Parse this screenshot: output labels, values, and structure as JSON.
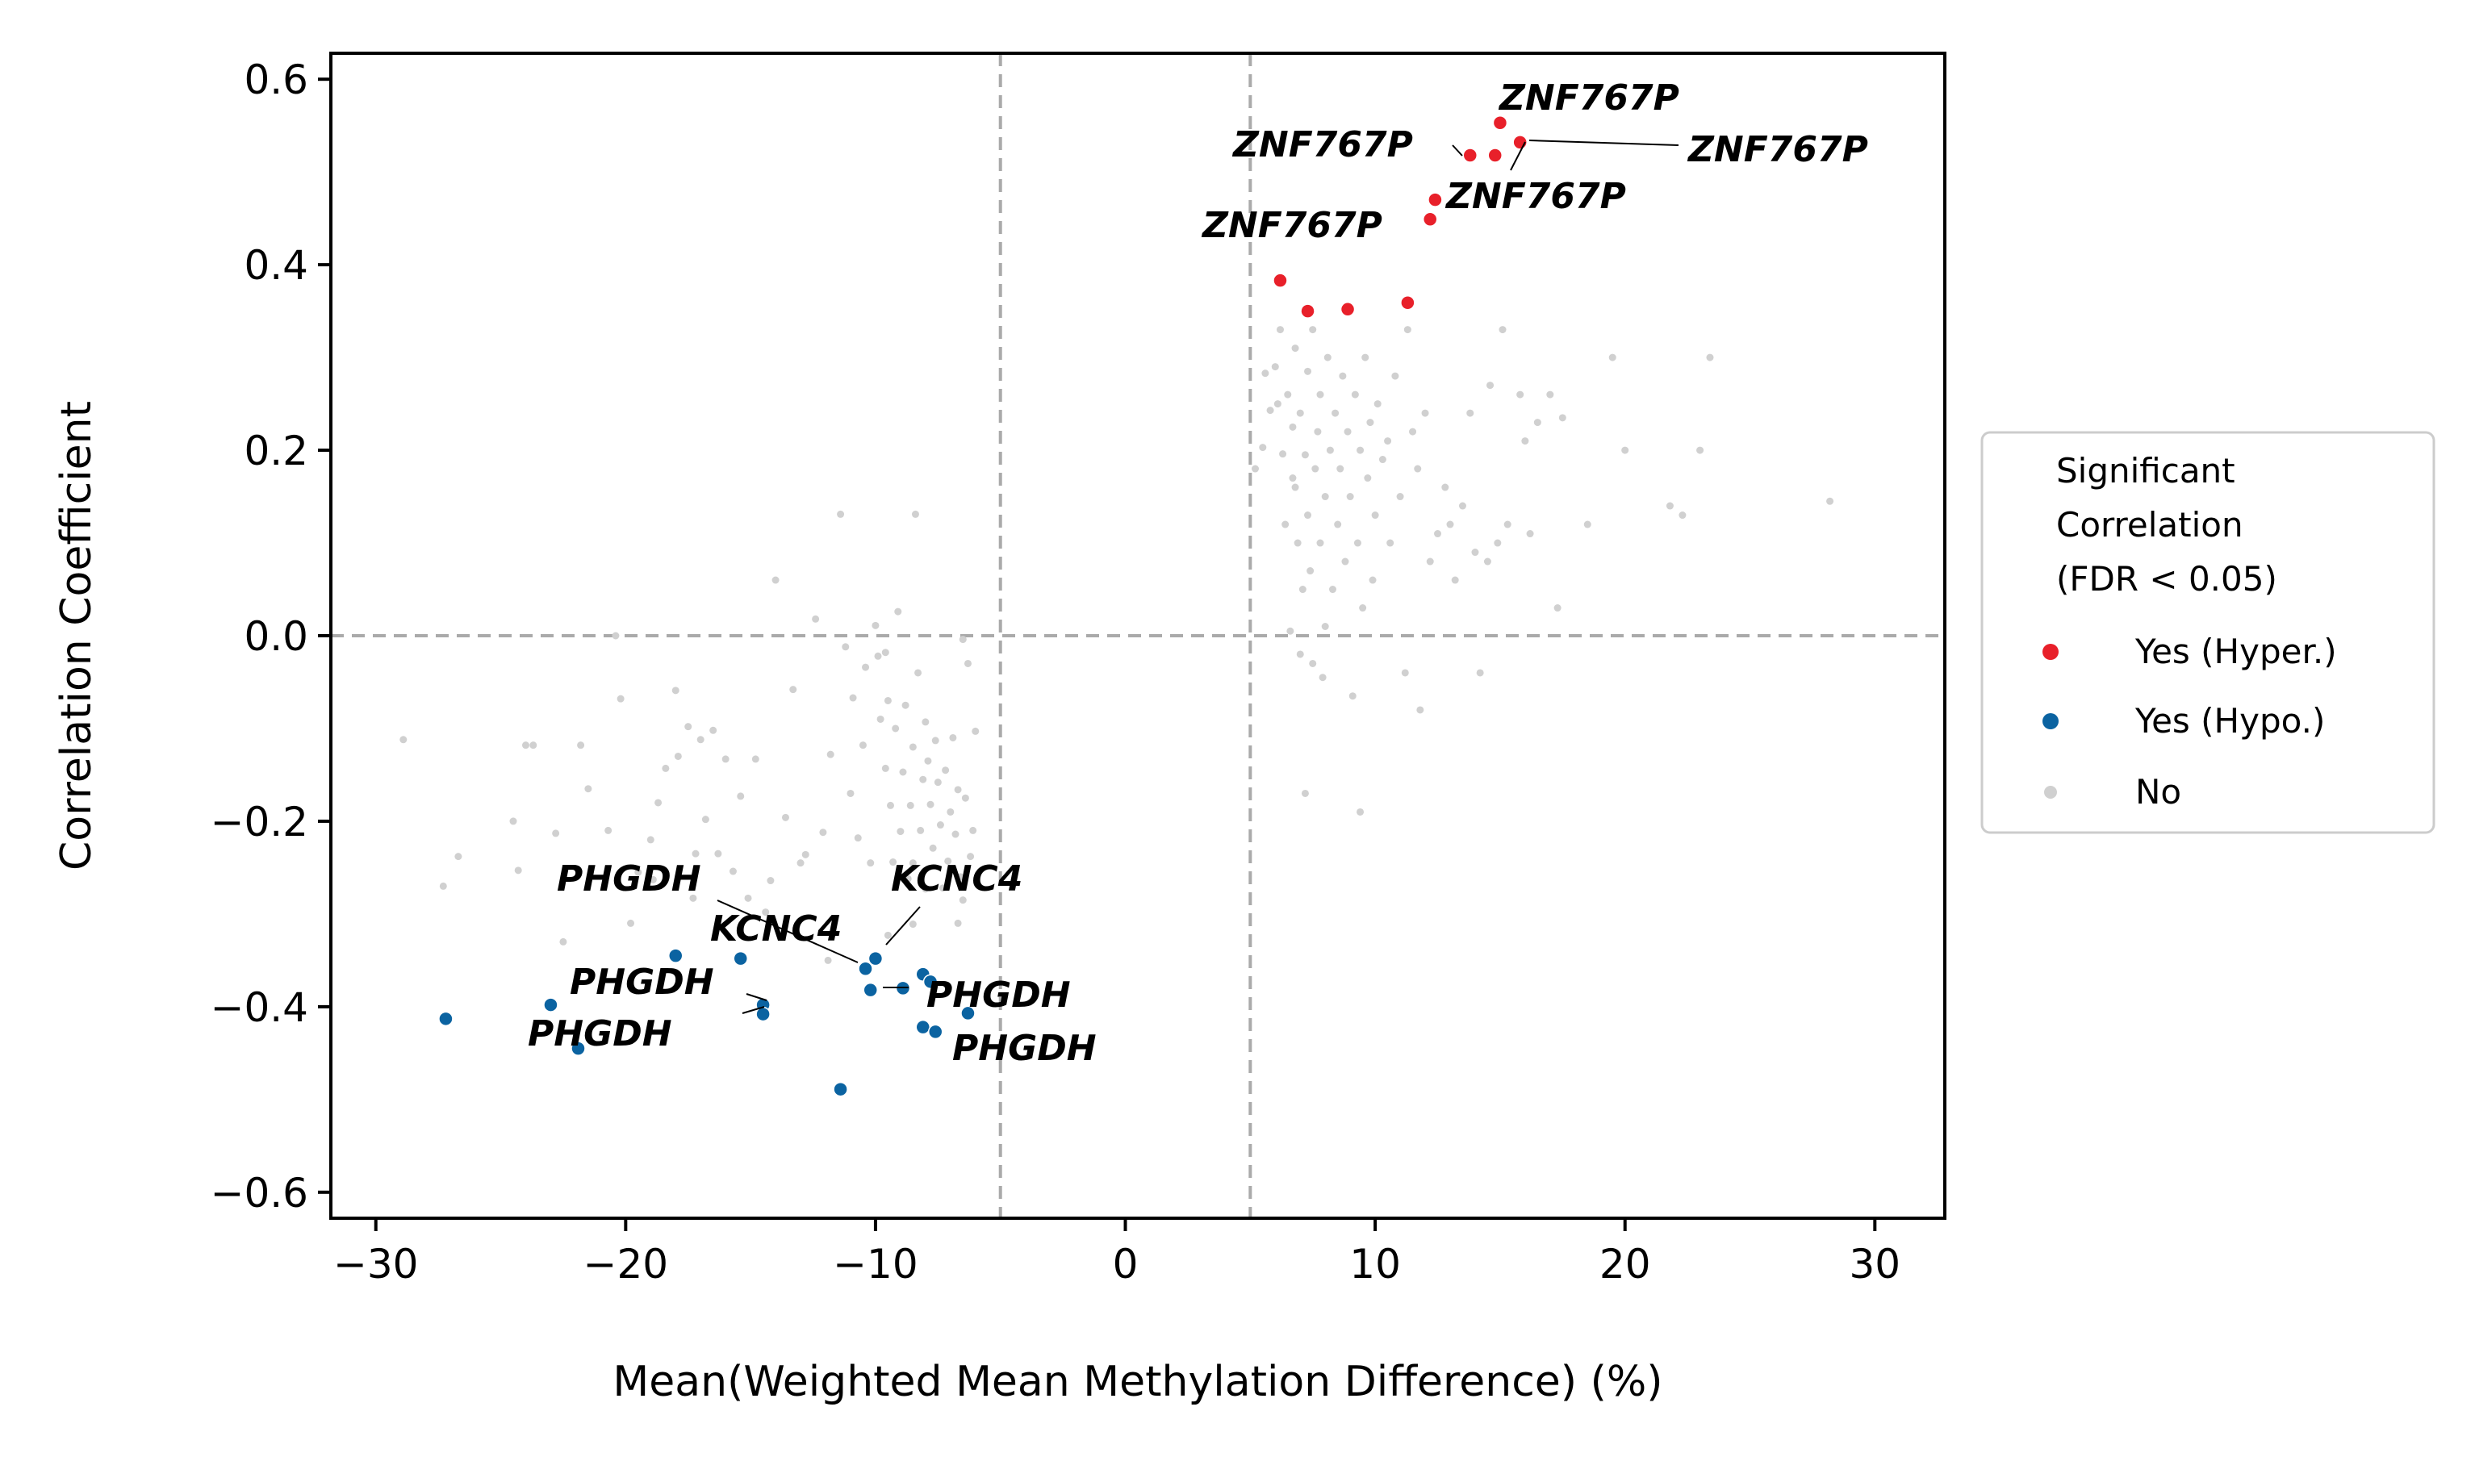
{
  "chart_data": {
    "type": "scatter",
    "xlabel": "Mean(Weighted Mean Methylation Difference) (%)",
    "ylabel": "Correlation Coefficient",
    "xlim": [
      -31.8,
      32.8
    ],
    "ylim": [
      -0.628,
      0.628
    ],
    "x_ticks": [
      -30,
      -20,
      -10,
      0,
      10,
      20,
      30
    ],
    "x_tick_labels": [
      "−30",
      "−20",
      "−10",
      "0",
      "10",
      "20",
      "30"
    ],
    "y_ticks": [
      -0.6,
      -0.4,
      -0.2,
      0.0,
      0.2,
      0.4,
      0.6
    ],
    "y_tick_labels": [
      "−0.6",
      "−0.4",
      "−0.2",
      "0.0",
      "0.2",
      "0.4",
      "0.6"
    ],
    "reference_lines": {
      "x": [
        -5,
        5
      ],
      "y": [
        0
      ],
      "color": "#aaaaaa",
      "style": "dashed"
    },
    "legend": {
      "title": [
        "Significant",
        "Correlation",
        "(FDR < 0.05)"
      ],
      "placement": "right outside",
      "entries": [
        "Yes (Hyper.)",
        "Yes (Hypo.)",
        "No"
      ]
    },
    "series": [
      {
        "name": "Yes (Hyper.)",
        "color": "#e8202a",
        "points": [
          [
            6.2,
            0.383
          ],
          [
            7.3,
            0.35
          ],
          [
            8.9,
            0.352
          ],
          [
            11.3,
            0.359
          ],
          [
            12.2,
            0.449
          ],
          [
            12.4,
            0.47
          ],
          [
            13.8,
            0.518
          ],
          [
            14.8,
            0.518
          ],
          [
            15.0,
            0.553
          ],
          [
            15.8,
            0.532
          ]
        ]
      },
      {
        "name": "Yes (Hypo.)",
        "color": "#0b63a1",
        "points": [
          [
            -27.2,
            -0.413
          ],
          [
            -23.0,
            -0.398
          ],
          [
            -21.9,
            -0.445
          ],
          [
            -18.0,
            -0.345
          ],
          [
            -15.4,
            -0.348
          ],
          [
            -14.5,
            -0.398
          ],
          [
            -14.5,
            -0.408
          ],
          [
            -11.4,
            -0.489
          ],
          [
            -10.4,
            -0.359
          ],
          [
            -10.0,
            -0.348
          ],
          [
            -10.2,
            -0.382
          ],
          [
            -8.9,
            -0.38
          ],
          [
            -8.1,
            -0.365
          ],
          [
            -7.8,
            -0.373
          ],
          [
            -8.1,
            -0.422
          ],
          [
            -7.6,
            -0.427
          ],
          [
            -6.3,
            -0.407
          ]
        ]
      },
      {
        "name": "No",
        "color": "#d0d0d0",
        "points": [
          [
            -28.9,
            -0.112
          ],
          [
            -27.3,
            -0.27
          ],
          [
            -26.7,
            -0.238
          ],
          [
            -24.5,
            -0.2
          ],
          [
            -24.3,
            -0.253
          ],
          [
            -24.0,
            -0.118
          ],
          [
            -23.7,
            -0.118
          ],
          [
            -22.8,
            -0.213
          ],
          [
            -22.5,
            -0.33
          ],
          [
            -21.8,
            -0.118
          ],
          [
            -21.5,
            -0.165
          ],
          [
            -20.7,
            -0.21
          ],
          [
            -20.2,
            -0.068
          ],
          [
            -19.8,
            -0.31
          ],
          [
            -19.5,
            -0.255
          ],
          [
            -19.0,
            -0.22
          ],
          [
            -18.9,
            -0.263
          ],
          [
            -18.7,
            -0.18
          ],
          [
            -18.4,
            -0.143
          ],
          [
            -18.0,
            -0.059
          ],
          [
            -17.9,
            -0.13
          ],
          [
            -17.5,
            -0.098
          ],
          [
            -17.3,
            -0.283
          ],
          [
            -17.2,
            -0.235
          ],
          [
            -17.0,
            -0.112
          ],
          [
            -16.8,
            -0.198
          ],
          [
            -16.5,
            -0.102
          ],
          [
            -16.3,
            -0.235
          ],
          [
            -16.0,
            -0.133
          ],
          [
            -15.7,
            -0.254
          ],
          [
            -15.4,
            -0.173
          ],
          [
            -15.1,
            -0.283
          ],
          [
            -14.8,
            -0.133
          ],
          [
            -14.4,
            -0.298
          ],
          [
            -14.2,
            -0.264
          ],
          [
            -14.0,
            0.06
          ],
          [
            -13.6,
            -0.196
          ],
          [
            -13.3,
            -0.058
          ],
          [
            -13.0,
            -0.245
          ],
          [
            -12.8,
            -0.236
          ],
          [
            -12.4,
            0.018
          ],
          [
            -12.1,
            -0.212
          ],
          [
            -11.8,
            -0.128
          ],
          [
            -11.4,
            0.131
          ],
          [
            -11.2,
            -0.012
          ],
          [
            -11.0,
            -0.17
          ],
          [
            -10.9,
            -0.067
          ],
          [
            -10.7,
            -0.218
          ],
          [
            -10.5,
            -0.118
          ],
          [
            -10.4,
            -0.034
          ],
          [
            -10.2,
            -0.245
          ],
          [
            -10.0,
            0.011
          ],
          [
            -9.9,
            -0.022
          ],
          [
            -9.8,
            -0.09
          ],
          [
            -9.6,
            -0.018
          ],
          [
            -9.6,
            -0.143
          ],
          [
            -9.5,
            -0.07
          ],
          [
            -9.4,
            -0.183
          ],
          [
            -9.3,
            -0.244
          ],
          [
            -9.2,
            -0.1
          ],
          [
            -9.1,
            0.026
          ],
          [
            -9.0,
            -0.211
          ],
          [
            -8.9,
            -0.147
          ],
          [
            -8.8,
            -0.075
          ],
          [
            -8.7,
            -0.262
          ],
          [
            -8.6,
            -0.183
          ],
          [
            -8.5,
            -0.12
          ],
          [
            -8.5,
            -0.245
          ],
          [
            -8.4,
            0.131
          ],
          [
            -8.3,
            -0.04
          ],
          [
            -8.2,
            -0.21
          ],
          [
            -8.1,
            -0.155
          ],
          [
            -8.0,
            -0.093
          ],
          [
            -8.0,
            -0.273
          ],
          [
            -7.9,
            -0.135
          ],
          [
            -7.8,
            -0.182
          ],
          [
            -7.7,
            -0.229
          ],
          [
            -7.6,
            -0.113
          ],
          [
            -7.5,
            -0.158
          ],
          [
            -7.4,
            -0.204
          ],
          [
            -7.3,
            -0.272
          ],
          [
            -7.2,
            -0.145
          ],
          [
            -7.1,
            -0.243
          ],
          [
            -7.0,
            -0.19
          ],
          [
            -6.9,
            -0.11
          ],
          [
            -6.8,
            -0.214
          ],
          [
            -6.7,
            -0.166
          ],
          [
            -6.6,
            -0.26
          ],
          [
            -6.5,
            -0.285
          ],
          [
            -6.5,
            -0.004
          ],
          [
            -6.4,
            -0.175
          ],
          [
            -6.3,
            -0.03
          ],
          [
            -6.2,
            -0.238
          ],
          [
            -6.1,
            -0.21
          ],
          [
            -6.0,
            -0.103
          ],
          [
            -11.9,
            -0.35
          ],
          [
            -9.5,
            -0.323
          ],
          [
            -8.5,
            -0.311
          ],
          [
            -6.7,
            -0.31
          ],
          [
            -20.4,
            0.0
          ],
          [
            5.2,
            0.18
          ],
          [
            5.5,
            0.203
          ],
          [
            5.6,
            0.283
          ],
          [
            5.8,
            0.243
          ],
          [
            6.0,
            0.29
          ],
          [
            6.1,
            0.25
          ],
          [
            6.2,
            0.33
          ],
          [
            6.3,
            0.196
          ],
          [
            6.4,
            0.12
          ],
          [
            6.5,
            0.26
          ],
          [
            6.6,
            0.005
          ],
          [
            6.7,
            0.225
          ],
          [
            6.8,
            0.16
          ],
          [
            6.8,
            0.31
          ],
          [
            6.9,
            0.1
          ],
          [
            7.0,
            0.24
          ],
          [
            7.0,
            -0.02
          ],
          [
            7.1,
            0.05
          ],
          [
            7.2,
            0.195
          ],
          [
            7.3,
            0.285
          ],
          [
            7.3,
            0.13
          ],
          [
            7.4,
            0.07
          ],
          [
            7.5,
            -0.03
          ],
          [
            7.5,
            0.33
          ],
          [
            7.6,
            0.18
          ],
          [
            7.7,
            0.22
          ],
          [
            7.8,
            0.26
          ],
          [
            7.8,
            0.1
          ],
          [
            7.9,
            -0.045
          ],
          [
            8.0,
            0.15
          ],
          [
            8.1,
            0.3
          ],
          [
            8.2,
            0.2
          ],
          [
            8.3,
            0.05
          ],
          [
            8.4,
            0.24
          ],
          [
            8.5,
            0.12
          ],
          [
            8.6,
            0.18
          ],
          [
            8.7,
            0.28
          ],
          [
            8.8,
            0.08
          ],
          [
            8.9,
            0.22
          ],
          [
            9.0,
            0.15
          ],
          [
            9.1,
            -0.065
          ],
          [
            9.2,
            0.26
          ],
          [
            9.3,
            0.1
          ],
          [
            9.4,
            0.2
          ],
          [
            9.5,
            0.03
          ],
          [
            9.6,
            0.3
          ],
          [
            9.7,
            0.17
          ],
          [
            9.8,
            0.23
          ],
          [
            9.9,
            0.06
          ],
          [
            10.0,
            0.13
          ],
          [
            10.1,
            0.25
          ],
          [
            10.3,
            0.19
          ],
          [
            10.5,
            0.21
          ],
          [
            10.6,
            0.1
          ],
          [
            10.8,
            0.28
          ],
          [
            11.0,
            0.15
          ],
          [
            11.2,
            -0.04
          ],
          [
            11.3,
            0.33
          ],
          [
            11.5,
            0.22
          ],
          [
            11.7,
            0.18
          ],
          [
            11.8,
            -0.08
          ],
          [
            12.0,
            0.24
          ],
          [
            12.2,
            0.08
          ],
          [
            12.5,
            0.11
          ],
          [
            12.8,
            0.16
          ],
          [
            13.0,
            0.12
          ],
          [
            13.2,
            0.06
          ],
          [
            13.5,
            0.14
          ],
          [
            13.8,
            0.24
          ],
          [
            14.0,
            0.09
          ],
          [
            14.2,
            -0.04
          ],
          [
            14.5,
            0.08
          ],
          [
            14.6,
            0.27
          ],
          [
            14.9,
            0.1
          ],
          [
            15.1,
            0.33
          ],
          [
            15.3,
            0.12
          ],
          [
            15.8,
            0.26
          ],
          [
            16.0,
            0.21
          ],
          [
            16.2,
            0.11
          ],
          [
            16.5,
            0.23
          ],
          [
            17.0,
            0.26
          ],
          [
            17.3,
            0.03
          ],
          [
            17.5,
            0.235
          ],
          [
            18.5,
            0.12
          ],
          [
            19.5,
            0.3
          ],
          [
            20.0,
            0.2
          ],
          [
            21.8,
            0.14
          ],
          [
            22.3,
            0.13
          ],
          [
            23.0,
            0.2
          ],
          [
            23.4,
            0.3
          ],
          [
            28.2,
            0.145
          ],
          [
            7.2,
            -0.17
          ],
          [
            9.4,
            -0.19
          ],
          [
            8.0,
            0.01
          ],
          [
            6.7,
            0.17
          ]
        ]
      }
    ],
    "annotations": [
      {
        "text": "ZNF767P",
        "anchor": "label-above"
      },
      {
        "text": "ZNF767P",
        "anchor": "label-left"
      },
      {
        "text": "ZNF767P",
        "anchor": "label-right"
      },
      {
        "text": "ZNF767P",
        "anchor": "label-mid"
      },
      {
        "text": "ZNF767P",
        "anchor": "label-lower"
      },
      {
        "text": "PHGDH",
        "anchor": "label-a"
      },
      {
        "text": "KCNC4",
        "anchor": "label-b"
      },
      {
        "text": "KCNC4",
        "anchor": "label-c"
      },
      {
        "text": "PHGDH",
        "anchor": "label-d"
      },
      {
        "text": "PHGDH",
        "anchor": "label-e"
      },
      {
        "text": "PHGDH",
        "anchor": "label-f"
      },
      {
        "text": "PHGDH",
        "anchor": "label-g"
      }
    ]
  }
}
